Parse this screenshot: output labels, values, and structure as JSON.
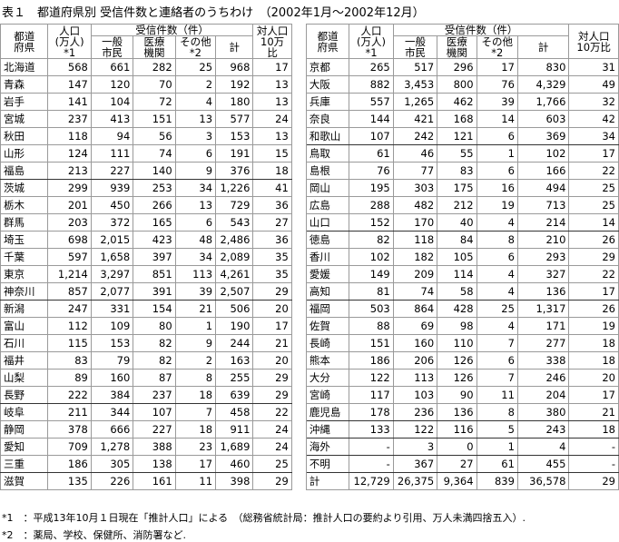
{
  "title": "表１　都道府県別 受信件数と連絡者のうちわけ　（2002年1月～2002年12月）",
  "table": {
    "header": {
      "prefecture": "都道\n府県",
      "population": "人口\n(万人)\n*1",
      "calls": "受信件数（件）",
      "general": "一般\n市民",
      "medical": "医療\n機関",
      "other": "その他\n*2",
      "total": "計",
      "ratio": "対人口\n10万比"
    },
    "left_rows": [
      [
        "北海道",
        "568",
        "661",
        "282",
        "25",
        "968",
        "17"
      ],
      [
        "青森",
        "147",
        "120",
        "70",
        "2",
        "192",
        "13"
      ],
      [
        "岩手",
        "141",
        "104",
        "72",
        "4",
        "180",
        "13"
      ],
      [
        "宮城",
        "237",
        "413",
        "151",
        "13",
        "577",
        "24"
      ],
      [
        "秋田",
        "118",
        "94",
        "56",
        "3",
        "153",
        "13"
      ],
      [
        "山形",
        "124",
        "111",
        "74",
        "6",
        "191",
        "15"
      ],
      [
        "福島",
        "213",
        "227",
        "140",
        "9",
        "376",
        "18"
      ],
      [
        "茨城",
        "299",
        "939",
        "253",
        "34",
        "1,226",
        "41"
      ],
      [
        "栃木",
        "201",
        "450",
        "266",
        "13",
        "729",
        "36"
      ],
      [
        "群馬",
        "203",
        "372",
        "165",
        "6",
        "543",
        "27"
      ],
      [
        "埼玉",
        "698",
        "2,015",
        "423",
        "48",
        "2,486",
        "36"
      ],
      [
        "千葉",
        "597",
        "1,658",
        "397",
        "34",
        "2,089",
        "35"
      ],
      [
        "東京",
        "1,214",
        "3,297",
        "851",
        "113",
        "4,261",
        "35"
      ],
      [
        "神奈川",
        "857",
        "2,077",
        "391",
        "39",
        "2,507",
        "29"
      ],
      [
        "新潟",
        "247",
        "331",
        "154",
        "21",
        "506",
        "20"
      ],
      [
        "富山",
        "112",
        "109",
        "80",
        "1",
        "190",
        "17"
      ],
      [
        "石川",
        "115",
        "153",
        "82",
        "9",
        "244",
        "21"
      ],
      [
        "福井",
        "83",
        "79",
        "82",
        "2",
        "163",
        "20"
      ],
      [
        "山梨",
        "89",
        "160",
        "87",
        "8",
        "255",
        "29"
      ],
      [
        "長野",
        "222",
        "384",
        "237",
        "18",
        "639",
        "29"
      ],
      [
        "岐阜",
        "211",
        "344",
        "107",
        "7",
        "458",
        "22"
      ],
      [
        "静岡",
        "378",
        "666",
        "227",
        "18",
        "911",
        "24"
      ],
      [
        "愛知",
        "709",
        "1,278",
        "388",
        "23",
        "1,689",
        "24"
      ],
      [
        "三重",
        "186",
        "305",
        "138",
        "17",
        "460",
        "25"
      ],
      [
        "滋賀",
        "135",
        "226",
        "161",
        "11",
        "398",
        "29"
      ]
    ],
    "right_rows": [
      [
        "京都",
        "265",
        "517",
        "296",
        "17",
        "830",
        "31"
      ],
      [
        "大阪",
        "882",
        "3,453",
        "800",
        "76",
        "4,329",
        "49"
      ],
      [
        "兵庫",
        "557",
        "1,265",
        "462",
        "39",
        "1,766",
        "32"
      ],
      [
        "奈良",
        "144",
        "421",
        "168",
        "14",
        "603",
        "42"
      ],
      [
        "和歌山",
        "107",
        "242",
        "121",
        "6",
        "369",
        "34"
      ],
      [
        "鳥取",
        "61",
        "46",
        "55",
        "1",
        "102",
        "17"
      ],
      [
        "島根",
        "76",
        "77",
        "83",
        "6",
        "166",
        "22"
      ],
      [
        "岡山",
        "195",
        "303",
        "175",
        "16",
        "494",
        "25"
      ],
      [
        "広島",
        "288",
        "482",
        "212",
        "19",
        "713",
        "25"
      ],
      [
        "山口",
        "152",
        "170",
        "40",
        "4",
        "214",
        "14"
      ],
      [
        "徳島",
        "82",
        "118",
        "84",
        "8",
        "210",
        "26"
      ],
      [
        "香川",
        "102",
        "182",
        "105",
        "6",
        "293",
        "29"
      ],
      [
        "愛媛",
        "149",
        "209",
        "114",
        "4",
        "327",
        "22"
      ],
      [
        "高知",
        "81",
        "74",
        "58",
        "4",
        "136",
        "17"
      ],
      [
        "福岡",
        "503",
        "864",
        "428",
        "25",
        "1,317",
        "26"
      ],
      [
        "佐賀",
        "88",
        "69",
        "98",
        "4",
        "171",
        "19"
      ],
      [
        "長崎",
        "151",
        "160",
        "110",
        "7",
        "277",
        "18"
      ],
      [
        "熊本",
        "186",
        "206",
        "126",
        "6",
        "338",
        "18"
      ],
      [
        "大分",
        "122",
        "113",
        "126",
        "7",
        "246",
        "20"
      ],
      [
        "宮崎",
        "117",
        "103",
        "90",
        "11",
        "204",
        "17"
      ],
      [
        "鹿児島",
        "178",
        "236",
        "136",
        "8",
        "380",
        "21"
      ],
      [
        "沖縄",
        "133",
        "122",
        "116",
        "5",
        "243",
        "18"
      ],
      [
        "海外",
        "-",
        "3",
        "0",
        "1",
        "4",
        "-"
      ],
      [
        "不明",
        "-",
        "367",
        "27",
        "61",
        "455",
        "-"
      ],
      [
        "計",
        "12,729",
        "26,375",
        "9,364",
        "839",
        "36,578",
        "29"
      ]
    ]
  },
  "footnotes": [
    "*1　：平成13年10月１日現在「推計人口」による　（総務省統計局：推計人口の要約より引用、万人未満四捨五入）.",
    "*2　：薬局、学校、保健所、消防署など."
  ]
}
